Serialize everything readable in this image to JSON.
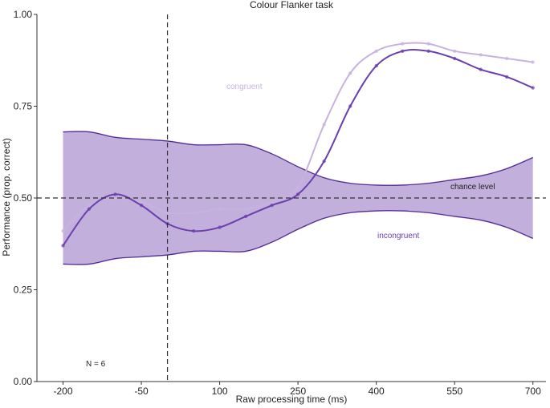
{
  "chart_data": {
    "type": "line",
    "title": "Colour Flanker task",
    "xlabel": "Raw processing time (ms)",
    "ylabel": "Performance (prop. correct)",
    "xlim": [
      -250,
      725
    ],
    "ylim": [
      0,
      1
    ],
    "xticks": [
      -200,
      -50,
      100,
      250,
      400,
      550,
      700
    ],
    "xtick_labels": [
      "-200",
      "-50",
      "100",
      "250",
      "400",
      "550",
      "700"
    ],
    "yticks": [
      0,
      0.25,
      0.5,
      0.75,
      1.0
    ],
    "ytick_labels": [
      "0.00",
      "0.25",
      "0.50",
      "0.75",
      "1.00"
    ],
    "chance_level": 0.5,
    "vertical_reference_x": 0,
    "grid": false,
    "colors": {
      "band_fill": "#b9a1d6",
      "band_edge_dark": "#4b2a8f",
      "band_edge_light": "#c9b3e3",
      "congruent": "#c7b2e0",
      "incongruent": "#6a3fae",
      "reference": "#333333"
    },
    "band": {
      "name": "chance band",
      "x": [
        -200,
        -150,
        -100,
        -50,
        0,
        50,
        100,
        150,
        200,
        250,
        300,
        350,
        400,
        450,
        500,
        550,
        600,
        650,
        700
      ],
      "upper": [
        0.68,
        0.68,
        0.665,
        0.66,
        0.655,
        0.645,
        0.645,
        0.645,
        0.62,
        0.585,
        0.555,
        0.54,
        0.535,
        0.535,
        0.54,
        0.55,
        0.56,
        0.58,
        0.61
      ],
      "lower": [
        0.32,
        0.32,
        0.335,
        0.34,
        0.345,
        0.355,
        0.355,
        0.355,
        0.38,
        0.415,
        0.445,
        0.46,
        0.465,
        0.465,
        0.46,
        0.45,
        0.44,
        0.42,
        0.39
      ]
    },
    "series": [
      {
        "name": "congruent",
        "x": [
          -200,
          -150,
          -100,
          -50,
          0,
          50,
          100,
          150,
          200,
          250,
          300,
          350,
          400,
          450,
          500,
          550,
          600,
          650,
          700
        ],
        "values": [
          0.41,
          0.48,
          0.5,
          0.49,
          0.46,
          0.46,
          0.47,
          0.47,
          0.49,
          0.53,
          0.7,
          0.84,
          0.9,
          0.92,
          0.92,
          0.9,
          0.89,
          0.88,
          0.87
        ]
      },
      {
        "name": "incongruent",
        "x": [
          -200,
          -150,
          -100,
          -50,
          0,
          50,
          100,
          150,
          200,
          250,
          300,
          350,
          400,
          450,
          500,
          550,
          600,
          650,
          700
        ],
        "values": [
          0.37,
          0.47,
          0.51,
          0.48,
          0.43,
          0.41,
          0.42,
          0.45,
          0.48,
          0.51,
          0.6,
          0.75,
          0.86,
          0.9,
          0.9,
          0.88,
          0.85,
          0.83,
          0.8
        ]
      }
    ],
    "annotations": {
      "congruent_label": "congruent",
      "incongruent_label": "incongruent",
      "chance_label": "chance level",
      "n_label": "N = 6"
    }
  }
}
